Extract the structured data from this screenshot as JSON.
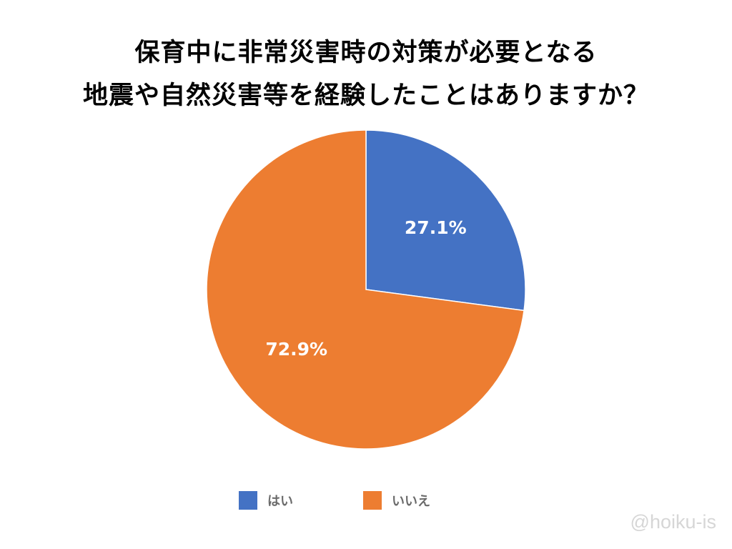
{
  "chart_data": {
    "type": "pie",
    "title_lines": [
      "保育中に非常災害時の対策が必要となる",
      "地震や自然災害等を経験したことはありますか？"
    ],
    "slices": [
      {
        "name": "はい",
        "value": 27.1,
        "label": "27.1%",
        "color": "#4472C4"
      },
      {
        "name": "いいえ",
        "value": 72.9,
        "label": "72.9%",
        "color": "#ED7D31"
      }
    ],
    "legend_placement": "bottom"
  },
  "watermark": "@hoiku-is"
}
